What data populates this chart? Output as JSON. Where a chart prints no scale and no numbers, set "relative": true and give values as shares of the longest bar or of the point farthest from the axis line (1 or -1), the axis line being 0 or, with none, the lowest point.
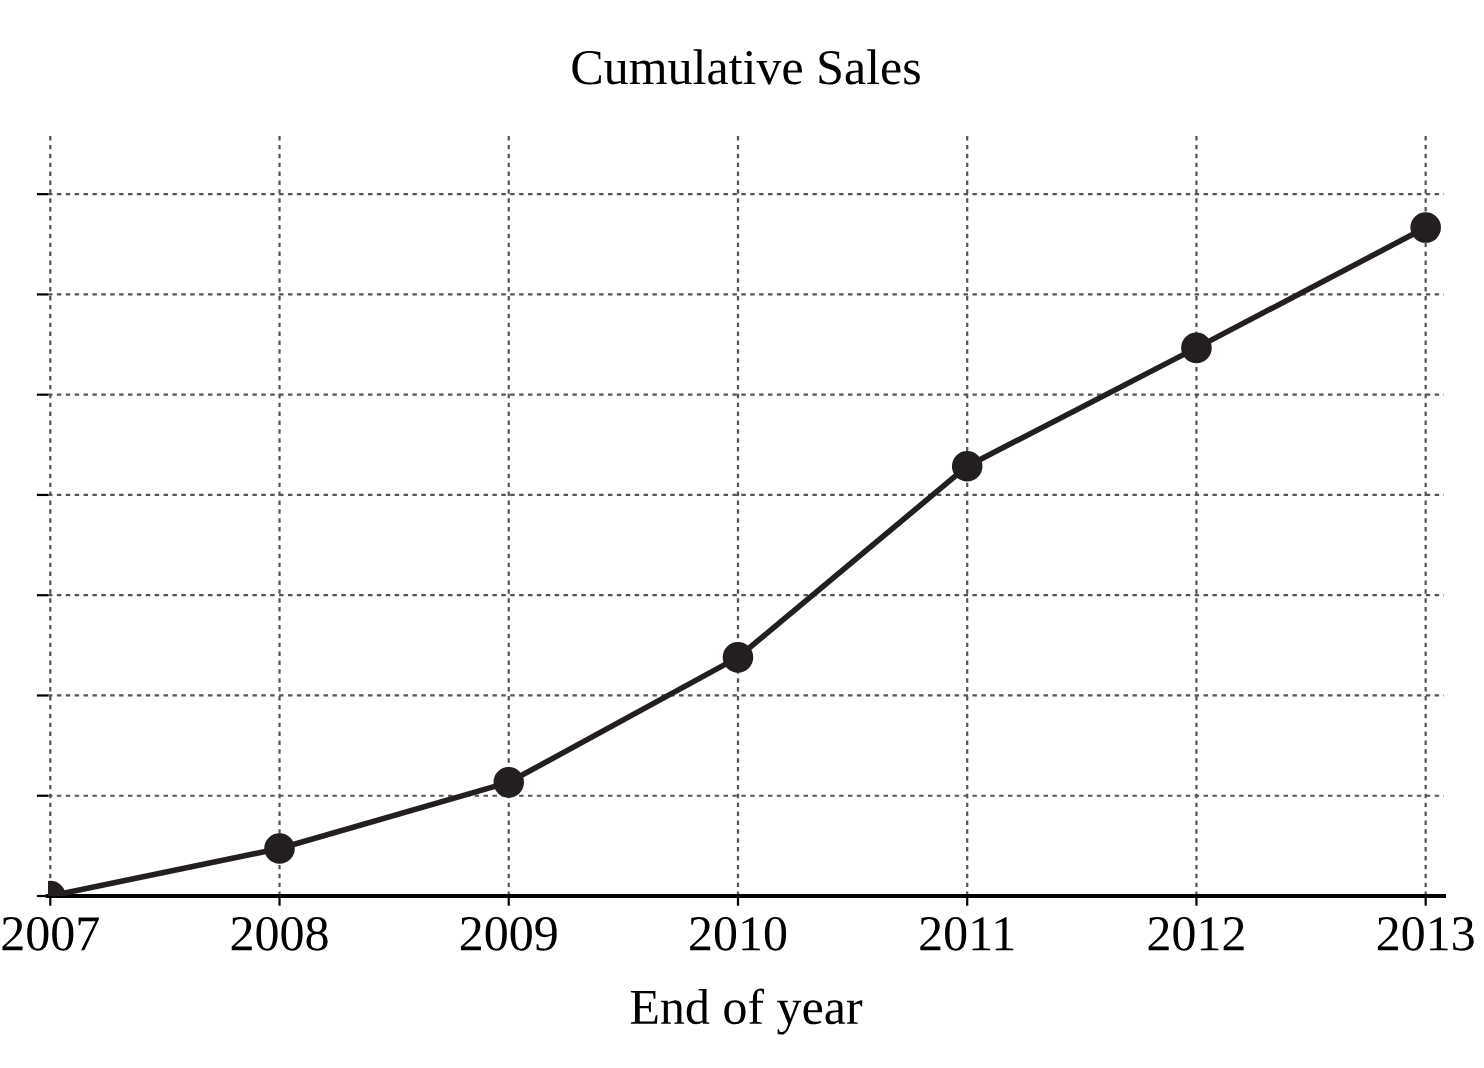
{
  "chart_data": {
    "type": "line",
    "title": "Cumulative Sales",
    "xlabel": "End of year",
    "categories": [
      "2007",
      "2008",
      "2009",
      "2010",
      "2011",
      "2012",
      "2013"
    ],
    "series": [
      {
        "color": "#231f20",
        "values": [
          0,
          0.071,
          0.17,
          0.357,
          0.643,
          0.82,
          1
        ]
      }
    ],
    "relative": true,
    "grid": true,
    "marker": "circle",
    "line_style": "solid"
  }
}
